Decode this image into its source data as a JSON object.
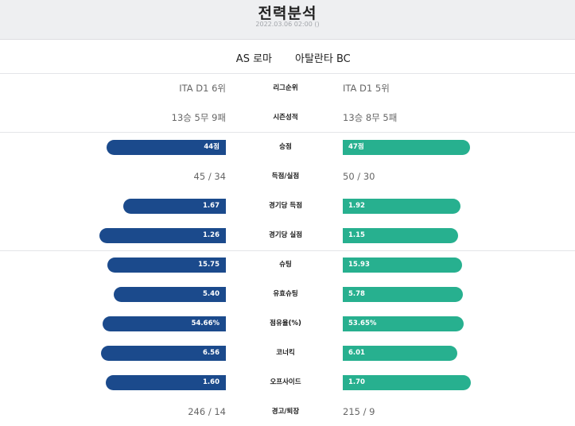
{
  "header": {
    "title": "전력분석",
    "datetime": "2022.03.06 02:00 ()"
  },
  "teams": {
    "home": "AS 로마",
    "away": "아탈란타 BC"
  },
  "colors": {
    "home_bar": "#1b4a8c",
    "away_bar": "#27b08f",
    "header_bg": "#eeeff1"
  },
  "text_stats": [
    {
      "label": "리그순위",
      "home": "ITA D1 6위",
      "away": "ITA D1 5위"
    },
    {
      "label": "시즌성적",
      "home": "13승 5무 9패",
      "away": "13승 8무 5패"
    },
    {
      "label": "득점/실점",
      "home": "45 / 34",
      "away": "50 / 30"
    },
    {
      "label": "경고/퇴장",
      "home": "246 / 14",
      "away": "215 / 9"
    }
  ],
  "bar_stats": [
    {
      "label": "승점",
      "home": "44점",
      "away": "47점",
      "home_value": 44,
      "away_value": 47,
      "scale_max": 50
    },
    {
      "label": "경기당 득점",
      "home": "1.67",
      "away": "1.92",
      "home_value": 1.67,
      "away_value": 1.92,
      "scale_max": 2.2
    },
    {
      "label": "경기당 실점",
      "home": "1.26",
      "away": "1.15",
      "home_value": 1.26,
      "away_value": 1.15,
      "scale_max": 1.35
    },
    {
      "label": "슈팅",
      "home": "15.75",
      "away": "15.93",
      "home_value": 15.75,
      "away_value": 15.93,
      "scale_max": 18
    },
    {
      "label": "유효슈팅",
      "home": "5.40",
      "away": "5.78",
      "home_value": 5.4,
      "away_value": 5.78,
      "scale_max": 6.5
    },
    {
      "label": "점유율(%)",
      "home": "54.66%",
      "away": "53.65%",
      "home_value": 54.66,
      "away_value": 53.65,
      "scale_max": 60
    },
    {
      "label": "코너킥",
      "home": "6.56",
      "away": "6.01",
      "home_value": 6.56,
      "away_value": 6.01,
      "scale_max": 7.1
    },
    {
      "label": "오프사이드",
      "home": "1.60",
      "away": "1.70",
      "home_value": 1.6,
      "away_value": 1.7,
      "scale_max": 1.8
    }
  ]
}
